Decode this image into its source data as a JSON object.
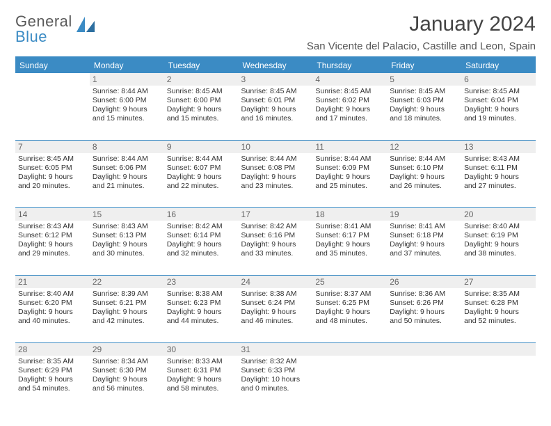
{
  "logo": {
    "word1": "General",
    "word2": "Blue"
  },
  "title": "January 2024",
  "location": "San Vicente del Palacio, Castille and Leon, Spain",
  "colors": {
    "accent": "#3b8bc4",
    "header_text": "#ffffff",
    "daynum_bg": "#efefef",
    "daynum_text": "#666666",
    "body_text": "#333333",
    "logo_gray": "#5a5a5a",
    "background": "#ffffff"
  },
  "weekdays": [
    "Sunday",
    "Monday",
    "Tuesday",
    "Wednesday",
    "Thursday",
    "Friday",
    "Saturday"
  ],
  "weeks": [
    [
      null,
      {
        "n": "1",
        "sunrise": "Sunrise: 8:44 AM",
        "sunset": "Sunset: 6:00 PM",
        "dl1": "Daylight: 9 hours",
        "dl2": "and 15 minutes."
      },
      {
        "n": "2",
        "sunrise": "Sunrise: 8:45 AM",
        "sunset": "Sunset: 6:00 PM",
        "dl1": "Daylight: 9 hours",
        "dl2": "and 15 minutes."
      },
      {
        "n": "3",
        "sunrise": "Sunrise: 8:45 AM",
        "sunset": "Sunset: 6:01 PM",
        "dl1": "Daylight: 9 hours",
        "dl2": "and 16 minutes."
      },
      {
        "n": "4",
        "sunrise": "Sunrise: 8:45 AM",
        "sunset": "Sunset: 6:02 PM",
        "dl1": "Daylight: 9 hours",
        "dl2": "and 17 minutes."
      },
      {
        "n": "5",
        "sunrise": "Sunrise: 8:45 AM",
        "sunset": "Sunset: 6:03 PM",
        "dl1": "Daylight: 9 hours",
        "dl2": "and 18 minutes."
      },
      {
        "n": "6",
        "sunrise": "Sunrise: 8:45 AM",
        "sunset": "Sunset: 6:04 PM",
        "dl1": "Daylight: 9 hours",
        "dl2": "and 19 minutes."
      }
    ],
    [
      {
        "n": "7",
        "sunrise": "Sunrise: 8:45 AM",
        "sunset": "Sunset: 6:05 PM",
        "dl1": "Daylight: 9 hours",
        "dl2": "and 20 minutes."
      },
      {
        "n": "8",
        "sunrise": "Sunrise: 8:44 AM",
        "sunset": "Sunset: 6:06 PM",
        "dl1": "Daylight: 9 hours",
        "dl2": "and 21 minutes."
      },
      {
        "n": "9",
        "sunrise": "Sunrise: 8:44 AM",
        "sunset": "Sunset: 6:07 PM",
        "dl1": "Daylight: 9 hours",
        "dl2": "and 22 minutes."
      },
      {
        "n": "10",
        "sunrise": "Sunrise: 8:44 AM",
        "sunset": "Sunset: 6:08 PM",
        "dl1": "Daylight: 9 hours",
        "dl2": "and 23 minutes."
      },
      {
        "n": "11",
        "sunrise": "Sunrise: 8:44 AM",
        "sunset": "Sunset: 6:09 PM",
        "dl1": "Daylight: 9 hours",
        "dl2": "and 25 minutes."
      },
      {
        "n": "12",
        "sunrise": "Sunrise: 8:44 AM",
        "sunset": "Sunset: 6:10 PM",
        "dl1": "Daylight: 9 hours",
        "dl2": "and 26 minutes."
      },
      {
        "n": "13",
        "sunrise": "Sunrise: 8:43 AM",
        "sunset": "Sunset: 6:11 PM",
        "dl1": "Daylight: 9 hours",
        "dl2": "and 27 minutes."
      }
    ],
    [
      {
        "n": "14",
        "sunrise": "Sunrise: 8:43 AM",
        "sunset": "Sunset: 6:12 PM",
        "dl1": "Daylight: 9 hours",
        "dl2": "and 29 minutes."
      },
      {
        "n": "15",
        "sunrise": "Sunrise: 8:43 AM",
        "sunset": "Sunset: 6:13 PM",
        "dl1": "Daylight: 9 hours",
        "dl2": "and 30 minutes."
      },
      {
        "n": "16",
        "sunrise": "Sunrise: 8:42 AM",
        "sunset": "Sunset: 6:14 PM",
        "dl1": "Daylight: 9 hours",
        "dl2": "and 32 minutes."
      },
      {
        "n": "17",
        "sunrise": "Sunrise: 8:42 AM",
        "sunset": "Sunset: 6:16 PM",
        "dl1": "Daylight: 9 hours",
        "dl2": "and 33 minutes."
      },
      {
        "n": "18",
        "sunrise": "Sunrise: 8:41 AM",
        "sunset": "Sunset: 6:17 PM",
        "dl1": "Daylight: 9 hours",
        "dl2": "and 35 minutes."
      },
      {
        "n": "19",
        "sunrise": "Sunrise: 8:41 AM",
        "sunset": "Sunset: 6:18 PM",
        "dl1": "Daylight: 9 hours",
        "dl2": "and 37 minutes."
      },
      {
        "n": "20",
        "sunrise": "Sunrise: 8:40 AM",
        "sunset": "Sunset: 6:19 PM",
        "dl1": "Daylight: 9 hours",
        "dl2": "and 38 minutes."
      }
    ],
    [
      {
        "n": "21",
        "sunrise": "Sunrise: 8:40 AM",
        "sunset": "Sunset: 6:20 PM",
        "dl1": "Daylight: 9 hours",
        "dl2": "and 40 minutes."
      },
      {
        "n": "22",
        "sunrise": "Sunrise: 8:39 AM",
        "sunset": "Sunset: 6:21 PM",
        "dl1": "Daylight: 9 hours",
        "dl2": "and 42 minutes."
      },
      {
        "n": "23",
        "sunrise": "Sunrise: 8:38 AM",
        "sunset": "Sunset: 6:23 PM",
        "dl1": "Daylight: 9 hours",
        "dl2": "and 44 minutes."
      },
      {
        "n": "24",
        "sunrise": "Sunrise: 8:38 AM",
        "sunset": "Sunset: 6:24 PM",
        "dl1": "Daylight: 9 hours",
        "dl2": "and 46 minutes."
      },
      {
        "n": "25",
        "sunrise": "Sunrise: 8:37 AM",
        "sunset": "Sunset: 6:25 PM",
        "dl1": "Daylight: 9 hours",
        "dl2": "and 48 minutes."
      },
      {
        "n": "26",
        "sunrise": "Sunrise: 8:36 AM",
        "sunset": "Sunset: 6:26 PM",
        "dl1": "Daylight: 9 hours",
        "dl2": "and 50 minutes."
      },
      {
        "n": "27",
        "sunrise": "Sunrise: 8:35 AM",
        "sunset": "Sunset: 6:28 PM",
        "dl1": "Daylight: 9 hours",
        "dl2": "and 52 minutes."
      }
    ],
    [
      {
        "n": "28",
        "sunrise": "Sunrise: 8:35 AM",
        "sunset": "Sunset: 6:29 PM",
        "dl1": "Daylight: 9 hours",
        "dl2": "and 54 minutes."
      },
      {
        "n": "29",
        "sunrise": "Sunrise: 8:34 AM",
        "sunset": "Sunset: 6:30 PM",
        "dl1": "Daylight: 9 hours",
        "dl2": "and 56 minutes."
      },
      {
        "n": "30",
        "sunrise": "Sunrise: 8:33 AM",
        "sunset": "Sunset: 6:31 PM",
        "dl1": "Daylight: 9 hours",
        "dl2": "and 58 minutes."
      },
      {
        "n": "31",
        "sunrise": "Sunrise: 8:32 AM",
        "sunset": "Sunset: 6:33 PM",
        "dl1": "Daylight: 10 hours",
        "dl2": "and 0 minutes."
      },
      null,
      null,
      null
    ]
  ]
}
